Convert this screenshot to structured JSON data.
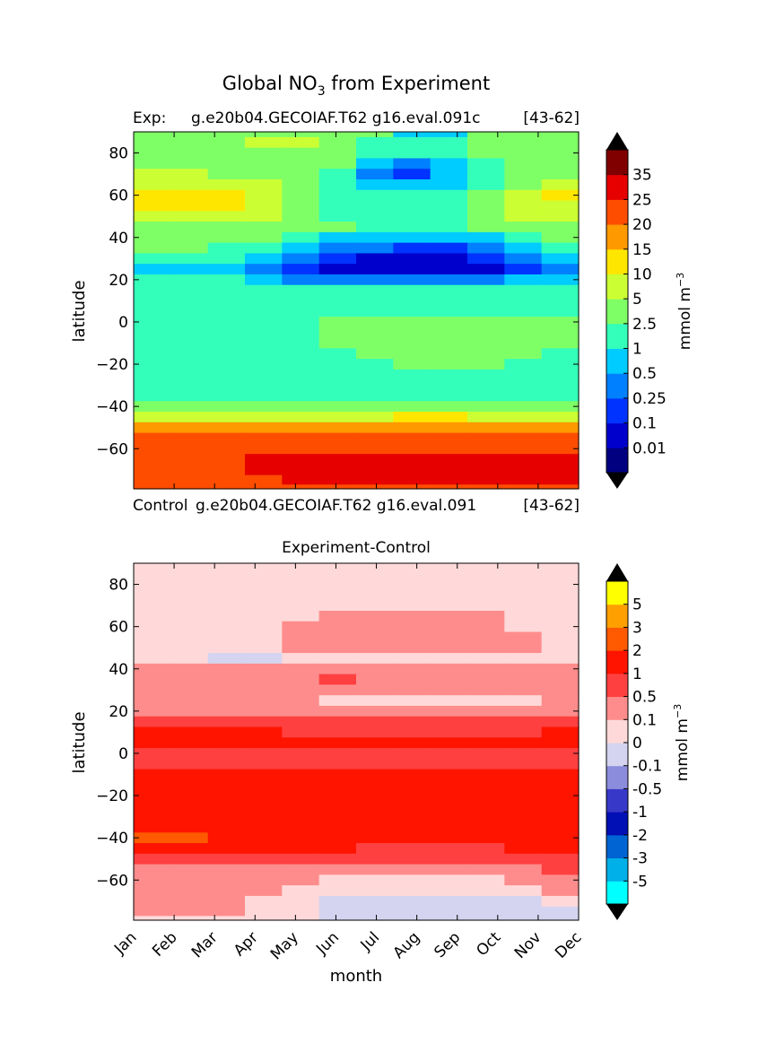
{
  "figure": {
    "suptitle_pre": "Global NO",
    "suptitle_sub": "3",
    "suptitle_post": " from Experiment"
  },
  "chart_data": [
    {
      "type": "heatmap",
      "left_title_label": "Exp:",
      "left_title_case": "g.e20b04.GECOIAF.T62 g16.eval.091c",
      "right_title": "[43-62]",
      "bottom_left_label": "Control",
      "bottom_case": "g.e20b04.GECOIAF.T62 g16.eval.091",
      "bottom_right": "[43-62]",
      "ylabel": "latitude",
      "yticks": [
        80,
        60,
        40,
        20,
        0,
        -20,
        -40,
        -60
      ],
      "ytick_labels": [
        "80",
        "60",
        "40",
        "20",
        "0",
        "−20",
        "−40",
        "−60"
      ],
      "ylim": [
        -79,
        90
      ],
      "colorbar": {
        "label": "mmol m",
        "label_sup": "−3",
        "levels": [
          "0.01",
          "0.1",
          "0.25",
          "0.5",
          "1",
          "2.5",
          "5",
          "10",
          "15",
          "20",
          "25",
          "35"
        ],
        "colors": [
          "#000080",
          "#0000cd",
          "#0033ff",
          "#0080ff",
          "#00ccff",
          "#33ffbb",
          "#7fff66",
          "#ccff33",
          "#ffe600",
          "#ff9900",
          "#ff4d00",
          "#e60000",
          "#800000"
        ],
        "under_color": "#000000",
        "over_color": "#000000"
      },
      "field": {
        "latitudes": [
          90,
          85,
          80,
          75,
          70,
          65,
          60,
          55,
          50,
          45,
          40,
          35,
          30,
          25,
          20,
          15,
          10,
          5,
          0,
          -5,
          -10,
          -15,
          -20,
          -25,
          -30,
          -35,
          -40,
          -45,
          -50,
          -55,
          -60,
          -65,
          -70,
          -75,
          -79
        ],
        "months": [
          "Jan",
          "Feb",
          "Mar",
          "Apr",
          "May",
          "Jun",
          "Jul",
          "Aug",
          "Sep",
          "Oct",
          "Nov",
          "Dec"
        ],
        "level_index": [
          [
            6,
            6,
            6,
            6,
            6,
            6,
            6,
            4,
            4,
            6,
            6,
            6
          ],
          [
            6,
            6,
            6,
            7,
            7,
            6,
            5,
            5,
            5,
            6,
            6,
            6
          ],
          [
            6,
            6,
            6,
            6,
            6,
            6,
            5,
            5,
            5,
            6,
            6,
            6
          ],
          [
            6,
            6,
            6,
            6,
            6,
            6,
            4,
            3,
            4,
            5,
            6,
            6
          ],
          [
            7,
            7,
            6,
            6,
            6,
            5,
            3,
            2,
            4,
            5,
            6,
            6
          ],
          [
            7,
            7,
            7,
            7,
            6,
            5,
            4,
            4,
            4,
            5,
            6,
            7
          ],
          [
            8,
            8,
            8,
            7,
            6,
            5,
            5,
            5,
            5,
            6,
            7,
            8
          ],
          [
            8,
            8,
            8,
            7,
            6,
            5,
            5,
            5,
            5,
            6,
            7,
            7
          ],
          [
            7,
            7,
            7,
            7,
            6,
            5,
            5,
            5,
            5,
            6,
            7,
            7
          ],
          [
            6,
            6,
            6,
            6,
            6,
            6,
            5,
            5,
            5,
            6,
            6,
            6
          ],
          [
            6,
            6,
            6,
            6,
            5,
            4,
            4,
            4,
            4,
            4,
            5,
            6
          ],
          [
            6,
            6,
            5,
            5,
            4,
            3,
            3,
            2,
            2,
            3,
            4,
            5
          ],
          [
            5,
            5,
            5,
            4,
            3,
            2,
            1,
            1,
            1,
            2,
            3,
            4
          ],
          [
            4,
            4,
            4,
            3,
            2,
            1,
            1,
            1,
            1,
            1,
            2,
            3
          ],
          [
            5,
            5,
            5,
            4,
            3,
            3,
            3,
            3,
            3,
            3,
            4,
            4
          ],
          [
            5,
            5,
            5,
            5,
            5,
            5,
            5,
            5,
            5,
            5,
            5,
            5
          ],
          [
            5,
            5,
            5,
            5,
            5,
            5,
            5,
            5,
            5,
            5,
            5,
            5
          ],
          [
            5,
            5,
            5,
            5,
            5,
            5,
            5,
            5,
            5,
            5,
            5,
            5
          ],
          [
            5,
            5,
            5,
            5,
            5,
            6,
            6,
            6,
            6,
            6,
            6,
            6
          ],
          [
            5,
            5,
            5,
            5,
            5,
            6,
            6,
            6,
            6,
            6,
            6,
            6
          ],
          [
            5,
            5,
            5,
            5,
            5,
            6,
            6,
            6,
            6,
            6,
            6,
            6
          ],
          [
            5,
            5,
            5,
            5,
            5,
            5,
            6,
            6,
            6,
            6,
            6,
            5
          ],
          [
            5,
            5,
            5,
            5,
            5,
            5,
            5,
            6,
            6,
            6,
            5,
            5
          ],
          [
            5,
            5,
            5,
            5,
            5,
            5,
            5,
            5,
            5,
            5,
            5,
            5
          ],
          [
            5,
            5,
            5,
            5,
            5,
            5,
            5,
            5,
            5,
            5,
            5,
            5
          ],
          [
            5,
            5,
            5,
            5,
            5,
            5,
            5,
            5,
            5,
            5,
            5,
            5
          ],
          [
            6,
            6,
            6,
            6,
            6,
            6,
            6,
            6,
            6,
            6,
            6,
            6
          ],
          [
            7,
            7,
            7,
            7,
            7,
            7,
            7,
            8,
            8,
            7,
            7,
            7
          ],
          [
            9,
            9,
            9,
            9,
            9,
            9,
            9,
            9,
            9,
            9,
            9,
            9
          ],
          [
            10,
            10,
            10,
            10,
            10,
            10,
            10,
            10,
            10,
            10,
            10,
            10
          ],
          [
            10,
            10,
            10,
            10,
            10,
            10,
            10,
            10,
            10,
            10,
            10,
            10
          ],
          [
            10,
            10,
            10,
            11,
            11,
            11,
            11,
            11,
            11,
            11,
            11,
            11
          ],
          [
            10,
            10,
            10,
            11,
            11,
            11,
            11,
            11,
            11,
            11,
            11,
            11
          ],
          [
            10,
            10,
            10,
            10,
            11,
            11,
            11,
            11,
            11,
            11,
            11,
            11
          ],
          [
            10,
            10,
            10,
            10,
            10,
            10,
            10,
            10,
            10,
            10,
            10,
            10
          ]
        ]
      }
    },
    {
      "type": "heatmap",
      "title": "Experiment-Control",
      "xlabel": "month",
      "ylabel": "latitude",
      "xtick_labels": [
        "Jan",
        "Feb",
        "Mar",
        "Apr",
        "May",
        "Jun",
        "Jul",
        "Aug",
        "Sep",
        "Oct",
        "Nov",
        "Dec"
      ],
      "yticks": [
        80,
        60,
        40,
        20,
        0,
        -20,
        -40,
        -60
      ],
      "ytick_labels": [
        "80",
        "60",
        "40",
        "20",
        "0",
        "−20",
        "−40",
        "−60"
      ],
      "ylim": [
        -79,
        90
      ],
      "colorbar": {
        "label": "mmol m",
        "label_sup": "−3",
        "levels": [
          "-5",
          "-3",
          "-2",
          "-1",
          "-0.5",
          "-0.1",
          "0",
          "0.1",
          "0.5",
          "1",
          "2",
          "3",
          "5"
        ],
        "colors": [
          "#00ffff",
          "#00b0e8",
          "#0064d2",
          "#0010b4",
          "#3838c8",
          "#8c8cdc",
          "#d4d4f0",
          "#ffd9d9",
          "#ff8c8c",
          "#ff4040",
          "#ff1400",
          "#ff5a00",
          "#ffa000",
          "#ffff00"
        ],
        "under_color": "#000000",
        "over_color": "#000000"
      },
      "field": {
        "latitudes": [
          90,
          85,
          80,
          75,
          70,
          65,
          60,
          55,
          50,
          45,
          40,
          35,
          30,
          25,
          20,
          15,
          10,
          5,
          0,
          -5,
          -10,
          -15,
          -20,
          -25,
          -30,
          -35,
          -40,
          -45,
          -50,
          -55,
          -60,
          -65,
          -70,
          -75,
          -79
        ],
        "months": [
          "Jan",
          "Feb",
          "Mar",
          "Apr",
          "May",
          "Jun",
          "Jul",
          "Aug",
          "Sep",
          "Oct",
          "Nov",
          "Dec"
        ],
        "level_index": [
          [
            7,
            7,
            7,
            7,
            7,
            7,
            7,
            7,
            7,
            7,
            7,
            7
          ],
          [
            7,
            7,
            7,
            7,
            7,
            7,
            7,
            7,
            7,
            7,
            7,
            7
          ],
          [
            7,
            7,
            7,
            7,
            7,
            7,
            7,
            7,
            7,
            7,
            7,
            7
          ],
          [
            7,
            7,
            7,
            7,
            7,
            7,
            7,
            7,
            7,
            7,
            7,
            7
          ],
          [
            7,
            7,
            7,
            7,
            7,
            7,
            7,
            7,
            7,
            7,
            7,
            7
          ],
          [
            7,
            7,
            7,
            7,
            7,
            8,
            8,
            8,
            8,
            8,
            7,
            7
          ],
          [
            7,
            7,
            7,
            7,
            8,
            8,
            8,
            8,
            8,
            8,
            7,
            7
          ],
          [
            7,
            7,
            7,
            7,
            8,
            8,
            8,
            8,
            8,
            8,
            8,
            7
          ],
          [
            7,
            7,
            7,
            7,
            8,
            8,
            8,
            8,
            8,
            8,
            8,
            7
          ],
          [
            7,
            7,
            6,
            6,
            7,
            7,
            7,
            7,
            7,
            7,
            7,
            7
          ],
          [
            8,
            8,
            8,
            8,
            8,
            8,
            8,
            8,
            8,
            8,
            8,
            8
          ],
          [
            8,
            8,
            8,
            8,
            8,
            9,
            8,
            8,
            8,
            8,
            8,
            8
          ],
          [
            8,
            8,
            8,
            8,
            8,
            8,
            8,
            8,
            8,
            8,
            8,
            8
          ],
          [
            8,
            8,
            8,
            8,
            8,
            7,
            7,
            7,
            7,
            7,
            7,
            8
          ],
          [
            8,
            8,
            8,
            8,
            8,
            8,
            8,
            8,
            8,
            8,
            8,
            8
          ],
          [
            9,
            9,
            9,
            9,
            9,
            9,
            9,
            9,
            9,
            9,
            9,
            9
          ],
          [
            10,
            10,
            10,
            10,
            9,
            9,
            9,
            9,
            9,
            9,
            9,
            10
          ],
          [
            10,
            10,
            10,
            10,
            10,
            10,
            10,
            10,
            10,
            10,
            10,
            10
          ],
          [
            9,
            9,
            9,
            9,
            9,
            9,
            9,
            9,
            9,
            9,
            9,
            9
          ],
          [
            9,
            9,
            9,
            9,
            9,
            9,
            9,
            9,
            9,
            9,
            9,
            9
          ],
          [
            10,
            10,
            10,
            10,
            10,
            10,
            10,
            10,
            10,
            10,
            10,
            10
          ],
          [
            10,
            10,
            10,
            10,
            10,
            10,
            10,
            10,
            10,
            10,
            10,
            10
          ],
          [
            10,
            10,
            10,
            10,
            10,
            10,
            10,
            10,
            10,
            10,
            10,
            10
          ],
          [
            10,
            10,
            10,
            10,
            10,
            10,
            10,
            10,
            10,
            10,
            10,
            10
          ],
          [
            10,
            10,
            10,
            10,
            10,
            10,
            10,
            10,
            10,
            10,
            10,
            10
          ],
          [
            10,
            10,
            10,
            10,
            10,
            10,
            10,
            10,
            10,
            10,
            10,
            10
          ],
          [
            11,
            11,
            10,
            10,
            10,
            10,
            10,
            10,
            10,
            10,
            10,
            10
          ],
          [
            10,
            10,
            10,
            10,
            10,
            10,
            9,
            9,
            9,
            9,
            10,
            10
          ],
          [
            9,
            9,
            9,
            9,
            9,
            9,
            9,
            9,
            9,
            9,
            9,
            9
          ],
          [
            8,
            8,
            8,
            8,
            8,
            8,
            8,
            8,
            8,
            8,
            8,
            9
          ],
          [
            8,
            8,
            8,
            8,
            8,
            7,
            7,
            7,
            7,
            7,
            8,
            8
          ],
          [
            8,
            8,
            8,
            8,
            7,
            7,
            7,
            7,
            7,
            7,
            7,
            8
          ],
          [
            8,
            8,
            8,
            7,
            7,
            6,
            6,
            6,
            6,
            6,
            6,
            7
          ],
          [
            8,
            8,
            8,
            7,
            7,
            6,
            6,
            6,
            6,
            6,
            6,
            6
          ],
          [
            7,
            7,
            7,
            7,
            7,
            6,
            6,
            6,
            6,
            6,
            6,
            6
          ]
        ]
      }
    }
  ]
}
